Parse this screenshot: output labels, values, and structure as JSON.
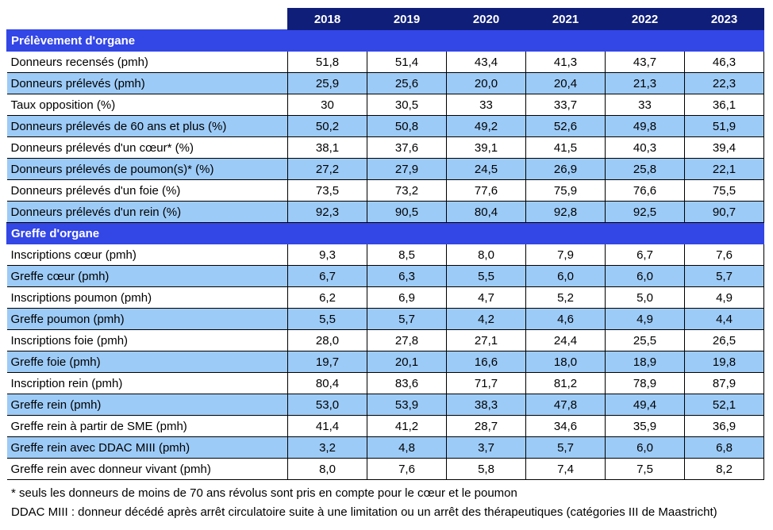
{
  "years": [
    "2018",
    "2019",
    "2020",
    "2021",
    "2022",
    "2023"
  ],
  "sections": [
    {
      "title": "Prélèvement d'organe",
      "rows": [
        {
          "label": "Donneurs recensés (pmh)",
          "values": [
            "51,8",
            "51,4",
            "43,4",
            "41,3",
            "43,7",
            "46,3"
          ]
        },
        {
          "label": "Donneurs prélevés (pmh)",
          "values": [
            "25,9",
            "25,6",
            "20,0",
            "20,4",
            "21,3",
            "22,3"
          ]
        },
        {
          "label": "Taux opposition (%)",
          "values": [
            "30",
            "30,5",
            "33",
            "33,7",
            "33",
            "36,1"
          ]
        },
        {
          "label": "Donneurs prélevés de 60 ans et plus (%)",
          "values": [
            "50,2",
            "50,8",
            "49,2",
            "52,6",
            "49,8",
            "51,9"
          ]
        },
        {
          "label": "Donneurs prélevés d'un cœur* (%)",
          "values": [
            "38,1",
            "37,6",
            "39,1",
            "41,5",
            "40,3",
            "39,4"
          ]
        },
        {
          "label": "Donneurs prélevés de poumon(s)* (%)",
          "values": [
            "27,2",
            "27,9",
            "24,5",
            "26,9",
            "25,8",
            "22,1"
          ]
        },
        {
          "label": "Donneurs prélevés d'un foie (%)",
          "values": [
            "73,5",
            "73,2",
            "77,6",
            "75,9",
            "76,6",
            "75,5"
          ]
        },
        {
          "label": "Donneurs prélevés d'un rein (%)",
          "values": [
            "92,3",
            "90,5",
            "80,4",
            "92,8",
            "92,5",
            "90,7"
          ]
        }
      ]
    },
    {
      "title": "Greffe d'organe",
      "rows": [
        {
          "label": "Inscriptions cœur (pmh)",
          "values": [
            "9,3",
            "8,5",
            "8,0",
            "7,9",
            "6,7",
            "7,6"
          ]
        },
        {
          "label": "Greffe cœur (pmh)",
          "values": [
            "6,7",
            "6,3",
            "5,5",
            "6,0",
            "6,0",
            "5,7"
          ]
        },
        {
          "label": "Inscriptions poumon (pmh)",
          "values": [
            "6,2",
            "6,9",
            "4,7",
            "5,2",
            "5,0",
            "4,9"
          ]
        },
        {
          "label": "Greffe poumon (pmh)",
          "values": [
            "5,5",
            "5,7",
            "4,2",
            "4,6",
            "4,9",
            "4,4"
          ]
        },
        {
          "label": "Inscriptions foie (pmh)",
          "values": [
            "28,0",
            "27,8",
            "27,1",
            "24,4",
            "25,5",
            "26,5"
          ]
        },
        {
          "label": "Greffe foie (pmh)",
          "values": [
            "19,7",
            "20,1",
            "16,6",
            "18,0",
            "18,9",
            "19,8"
          ]
        },
        {
          "label": "Inscription rein (pmh)",
          "values": [
            "80,4",
            "83,6",
            "71,7",
            "81,2",
            "78,9",
            "87,9"
          ]
        },
        {
          "label": "Greffe rein (pmh)",
          "values": [
            "53,0",
            "53,9",
            "38,3",
            "47,8",
            "49,4",
            "52,1"
          ]
        },
        {
          "label": "Greffe rein à partir de SME (pmh)",
          "values": [
            "41,4",
            "41,2",
            "28,7",
            "34,6",
            "35,9",
            "36,9"
          ]
        },
        {
          "label": "Greffe rein avec DDAC MIII (pmh)",
          "values": [
            "3,2",
            "4,8",
            "3,7",
            "5,7",
            "6,0",
            "6,8"
          ]
        },
        {
          "label": "Greffe rein avec donneur vivant (pmh)",
          "values": [
            "8,0",
            "7,6",
            "5,8",
            "7,4",
            "7,5",
            "8,2"
          ]
        }
      ]
    }
  ],
  "notes": [
    "* seuls les donneurs de moins de 70 ans révolus sont pris en compte pour  le cœur et le poumon",
    "DDAC MIII : donneur décédé après arrêt circulatoire suite à une limitation ou un arrêt des thérapeutiques (catégories III de Maastricht)"
  ],
  "colors": {
    "header_bg": "#0f1e78",
    "section_bg": "#3346e6",
    "alt_row_bg": "#9dcbf7"
  }
}
